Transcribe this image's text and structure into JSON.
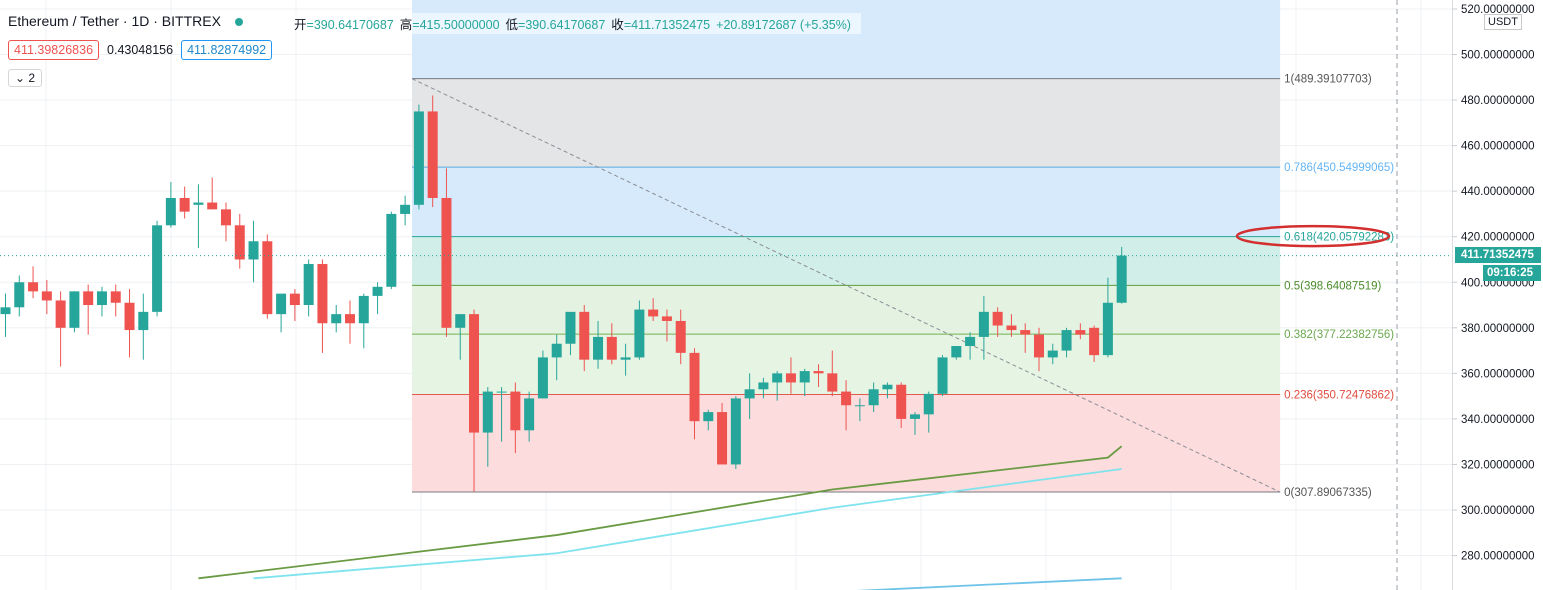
{
  "header": {
    "symbol": "Ethereum / Tether · 1D · BITTREX",
    "ohlc": {
      "open_label": "开",
      "open": "=390.64170687",
      "high_label": "高",
      "high": "=415.50000000",
      "low_label": "低",
      "low": "=390.64170687",
      "close_label": "收",
      "close": "=411.71352475",
      "change": "+20.89172687 (+5.35%)"
    },
    "bid": "411.39826836",
    "spread": "0.43048156",
    "ask": "411.82874992",
    "indicators_toggle": "⌄ 2"
  },
  "price_scale": {
    "currency": "USDT",
    "ticks": [
      "520.00000000",
      "500.00000000",
      "480.00000000",
      "460.00000000",
      "440.00000000",
      "420.00000000",
      "400.00000000",
      "380.00000000",
      "360.00000000",
      "340.00000000",
      "320.00000000",
      "300.00000000",
      "280.00000000"
    ],
    "last_price": "411.71352475",
    "countdown": "09:16:25"
  },
  "colors": {
    "up": "#26a69a",
    "down": "#ef5350",
    "grid": "#eef0f3",
    "ma_olive": "#6a9b44",
    "ma_cyan": "#7fe3ee",
    "ma_blue": "#6fc3e8",
    "fib_zone_top": "#e4e5e7",
    "fib_zone_786": "#d6eafc",
    "fib_zone_618": "#d2eee8",
    "fib_zone_5": "#e4f2e2",
    "fib_zone_382": "#e6f4e4",
    "fib_zone_236": "#fcdcdc",
    "highlight_ellipse": "#d32f2f"
  },
  "chart_data": {
    "type": "candlestick",
    "symbol": "Ethereum / Tether",
    "interval": "1D",
    "exchange": "BITTREX",
    "ylim": [
      270,
      522
    ],
    "ylabel": "USDT",
    "last_price": 411.71352475,
    "candles": [
      {
        "o": 386,
        "h": 395,
        "l": 376,
        "c": 389
      },
      {
        "o": 389,
        "h": 403,
        "l": 385,
        "c": 400
      },
      {
        "o": 400,
        "h": 407,
        "l": 393,
        "c": 396
      },
      {
        "o": 396,
        "h": 401,
        "l": 386,
        "c": 392
      },
      {
        "o": 392,
        "h": 396,
        "l": 363,
        "c": 380
      },
      {
        "o": 380,
        "h": 396,
        "l": 378,
        "c": 396
      },
      {
        "o": 396,
        "h": 399,
        "l": 377,
        "c": 390
      },
      {
        "o": 390,
        "h": 398,
        "l": 385,
        "c": 396
      },
      {
        "o": 396,
        "h": 399,
        "l": 385,
        "c": 391
      },
      {
        "o": 391,
        "h": 397,
        "l": 367,
        "c": 379
      },
      {
        "o": 379,
        "h": 395,
        "l": 366,
        "c": 387
      },
      {
        "o": 387,
        "h": 427,
        "l": 385,
        "c": 425
      },
      {
        "o": 425,
        "h": 444,
        "l": 424,
        "c": 437
      },
      {
        "o": 437,
        "h": 442,
        "l": 428,
        "c": 431
      },
      {
        "o": 434,
        "h": 443,
        "l": 415,
        "c": 435
      },
      {
        "o": 435,
        "h": 446,
        "l": 432,
        "c": 432
      },
      {
        "o": 432,
        "h": 435,
        "l": 418,
        "c": 425
      },
      {
        "o": 425,
        "h": 430,
        "l": 406,
        "c": 410
      },
      {
        "o": 410,
        "h": 427,
        "l": 400,
        "c": 418
      },
      {
        "o": 418,
        "h": 421,
        "l": 384,
        "c": 386
      },
      {
        "o": 386,
        "h": 394,
        "l": 378,
        "c": 395
      },
      {
        "o": 395,
        "h": 397,
        "l": 383,
        "c": 390
      },
      {
        "o": 390,
        "h": 410,
        "l": 385,
        "c": 408
      },
      {
        "o": 408,
        "h": 410,
        "l": 369,
        "c": 382
      },
      {
        "o": 382,
        "h": 390,
        "l": 378,
        "c": 386
      },
      {
        "o": 386,
        "h": 392,
        "l": 373,
        "c": 382
      },
      {
        "o": 382,
        "h": 395,
        "l": 371,
        "c": 394
      },
      {
        "o": 394,
        "h": 400,
        "l": 386,
        "c": 398
      },
      {
        "o": 398,
        "h": 431,
        "l": 397,
        "c": 430
      },
      {
        "o": 430,
        "h": 438,
        "l": 425,
        "c": 434
      },
      {
        "o": 434,
        "h": 478,
        "l": 432,
        "c": 475
      },
      {
        "o": 475,
        "h": 482,
        "l": 433,
        "c": 437
      },
      {
        "o": 437,
        "h": 450,
        "l": 376,
        "c": 380
      },
      {
        "o": 380,
        "h": 386,
        "l": 366,
        "c": 386
      },
      {
        "o": 386,
        "h": 388,
        "l": 308,
        "c": 334
      },
      {
        "o": 334,
        "h": 354,
        "l": 319,
        "c": 352
      },
      {
        "o": 352,
        "h": 354,
        "l": 330,
        "c": 352
      },
      {
        "o": 352,
        "h": 356,
        "l": 325,
        "c": 335
      },
      {
        "o": 335,
        "h": 352,
        "l": 330,
        "c": 349
      },
      {
        "o": 349,
        "h": 370,
        "l": 349,
        "c": 367
      },
      {
        "o": 367,
        "h": 377,
        "l": 357,
        "c": 373
      },
      {
        "o": 373,
        "h": 386,
        "l": 368,
        "c": 387
      },
      {
        "o": 387,
        "h": 390,
        "l": 361,
        "c": 366
      },
      {
        "o": 366,
        "h": 383,
        "l": 362,
        "c": 376
      },
      {
        "o": 376,
        "h": 382,
        "l": 364,
        "c": 366
      },
      {
        "o": 366,
        "h": 373,
        "l": 359,
        "c": 367
      },
      {
        "o": 367,
        "h": 392,
        "l": 366,
        "c": 388
      },
      {
        "o": 388,
        "h": 393,
        "l": 383,
        "c": 385
      },
      {
        "o": 385,
        "h": 388,
        "l": 374,
        "c": 383
      },
      {
        "o": 383,
        "h": 388,
        "l": 364,
        "c": 369
      },
      {
        "o": 369,
        "h": 371,
        "l": 331,
        "c": 339
      },
      {
        "o": 339,
        "h": 344,
        "l": 335,
        "c": 343
      },
      {
        "o": 343,
        "h": 347,
        "l": 320,
        "c": 320
      },
      {
        "o": 320,
        "h": 350,
        "l": 318,
        "c": 349
      },
      {
        "o": 349,
        "h": 360,
        "l": 340,
        "c": 353
      },
      {
        "o": 353,
        "h": 358,
        "l": 349,
        "c": 356
      },
      {
        "o": 356,
        "h": 361,
        "l": 348,
        "c": 360
      },
      {
        "o": 360,
        "h": 367,
        "l": 351,
        "c": 356
      },
      {
        "o": 356,
        "h": 362,
        "l": 350,
        "c": 361
      },
      {
        "o": 361,
        "h": 364,
        "l": 354,
        "c": 360
      },
      {
        "o": 360,
        "h": 370,
        "l": 350,
        "c": 352
      },
      {
        "o": 352,
        "h": 357,
        "l": 335,
        "c": 346
      },
      {
        "o": 346,
        "h": 349,
        "l": 339,
        "c": 346
      },
      {
        "o": 346,
        "h": 356,
        "l": 343,
        "c": 353
      },
      {
        "o": 353,
        "h": 356,
        "l": 349,
        "c": 355
      },
      {
        "o": 355,
        "h": 356,
        "l": 336,
        "c": 340
      },
      {
        "o": 340,
        "h": 343,
        "l": 333,
        "c": 342
      },
      {
        "o": 342,
        "h": 352,
        "l": 334,
        "c": 351
      },
      {
        "o": 351,
        "h": 368,
        "l": 350,
        "c": 367
      },
      {
        "o": 367,
        "h": 372,
        "l": 366,
        "c": 372
      },
      {
        "o": 372,
        "h": 378,
        "l": 366,
        "c": 376
      },
      {
        "o": 376,
        "h": 394,
        "l": 366,
        "c": 387
      },
      {
        "o": 387,
        "h": 389,
        "l": 376,
        "c": 381
      },
      {
        "o": 381,
        "h": 386,
        "l": 376,
        "c": 379
      },
      {
        "o": 379,
        "h": 382,
        "l": 369,
        "c": 377
      },
      {
        "o": 377,
        "h": 380,
        "l": 361,
        "c": 367
      },
      {
        "o": 367,
        "h": 373,
        "l": 364,
        "c": 370
      },
      {
        "o": 370,
        "h": 380,
        "l": 367,
        "c": 379
      },
      {
        "o": 379,
        "h": 382,
        "l": 375,
        "c": 377
      },
      {
        "o": 380,
        "h": 381,
        "l": 365,
        "c": 368
      },
      {
        "o": 368,
        "h": 402,
        "l": 367,
        "c": 391
      },
      {
        "o": 391,
        "h": 415.5,
        "l": 390.64,
        "c": 411.71
      }
    ],
    "moving_averages": [
      {
        "color": "olive",
        "x": [
          14,
          40,
          60,
          80,
          81
        ],
        "values": [
          270,
          289,
          309,
          323,
          328
        ]
      },
      {
        "color": "cyan",
        "x": [
          18,
          40,
          60,
          81
        ],
        "values": [
          270,
          281,
          301,
          318
        ]
      },
      {
        "color": "blue",
        "x": [
          60,
          81
        ],
        "values": [
          264,
          270
        ]
      }
    ],
    "fibonacci": {
      "start_index": 29.5,
      "end_index": 92.5,
      "high": 489.39107703,
      "low": 307.89067335,
      "levels": [
        {
          "ratio": 1,
          "price": 489.39107703,
          "label": "1(489.39107703)"
        },
        {
          "ratio": 0.786,
          "price": 450.54999065,
          "label": "0.786(450.54999065)"
        },
        {
          "ratio": 0.618,
          "price": 420.05792283,
          "label": "0.618(420.05792283)"
        },
        {
          "ratio": 0.5,
          "price": 398.64087519,
          "label": "0.5(398.64087519)"
        },
        {
          "ratio": 0.382,
          "price": 377.22382756,
          "label": "0.382(377.22382756)"
        },
        {
          "ratio": 0.236,
          "price": 350.72476862,
          "label": "0.236(350.72476862)"
        },
        {
          "ratio": 0,
          "price": 307.89067335,
          "label": "0(307.89067335)"
        }
      ],
      "highlighted_level": "0.618"
    }
  }
}
